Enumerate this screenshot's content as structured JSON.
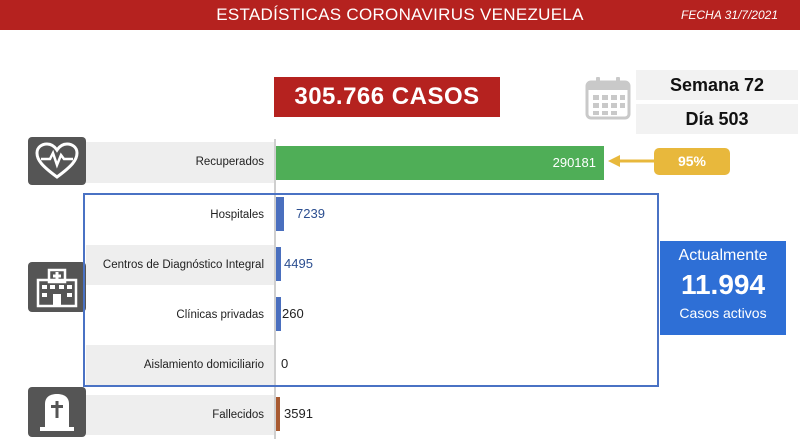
{
  "header": {
    "title": "ESTADÍSTICAS CORONAVIRUS VENEZUELA",
    "fecha": "FECHA 31/7/2021"
  },
  "total_label": "305.766 CASOS",
  "semana": "Semana 72",
  "dia": "Día 503",
  "recuperados_pct": "95%",
  "actualmente": {
    "title": "Actualmente",
    "value": "11.994",
    "subtitle": "Casos activos"
  },
  "colors": {
    "header_red": "#b5221f",
    "green": "#4fae57",
    "blue": "#4a6fbe",
    "brown": "#a85a31",
    "gold": "#e8b83c",
    "active_blue": "#2e6fd6"
  },
  "icons": [
    "calendar-icon",
    "heart-pulse-icon",
    "hospital-icon",
    "tombstone-icon",
    "arrow-left-icon"
  ],
  "chart_data": {
    "type": "bar",
    "orientation": "horizontal",
    "categories": [
      "Recuperados",
      "Hospitales",
      "Centros de Diagnóstico Integral",
      "Clínicas privadas",
      "Aislamiento domiciliario",
      "Fallecidos"
    ],
    "values": [
      290181,
      7239,
      4495,
      260,
      0,
      3591
    ],
    "value_labels": [
      "290181",
      "7239",
      "4495",
      "260",
      "0",
      "3591"
    ]
  }
}
